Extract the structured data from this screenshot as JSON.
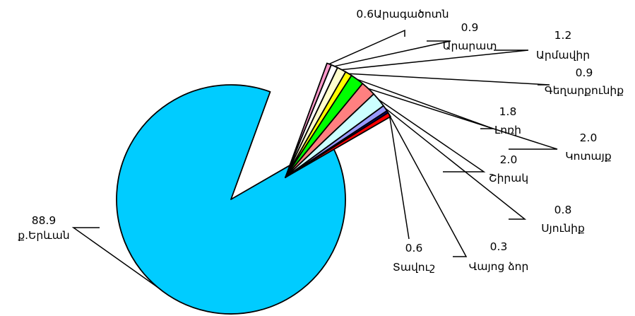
{
  "chart_data": {
    "type": "pie",
    "title": "",
    "labels": [
      "ք.Երևան",
      "Արագածոտն",
      "Արարատ",
      "Արմավիր",
      "Գեղարքունիք",
      "Լոռի",
      "Կոտայք",
      "Շիրակ",
      "Սյունիք",
      "Վայոց ձոր",
      "Տավուշ"
    ],
    "values": [
      88.9,
      0.6,
      0.9,
      1.2,
      0.9,
      1.8,
      2.0,
      2.0,
      0.8,
      0.3,
      0.6
    ],
    "value_labels": [
      "88.9",
      "0.6",
      "0.9",
      "1.2",
      "0.9",
      "1.8",
      "2.0",
      "2.0",
      "0.8",
      "0.3",
      "0.6"
    ],
    "colors": [
      "#00CCFF",
      "#FF99CC",
      "#FFFFFF",
      "#FFFFCC",
      "#FFFF00",
      "#00FF00",
      "#FF8080",
      "#CCFFFF",
      "#9999FF",
      "#000080",
      "#FF0000"
    ],
    "exploded": [
      "Արագածոտն",
      "Արարատ",
      "Արմավիր",
      "Գեղարքունիք",
      "Լոռի",
      "Կոտայք",
      "Շիրակ",
      "Սյունիք",
      "Վայոց ձոր",
      "Տավուշ"
    ],
    "legend": "none",
    "grid": false
  }
}
